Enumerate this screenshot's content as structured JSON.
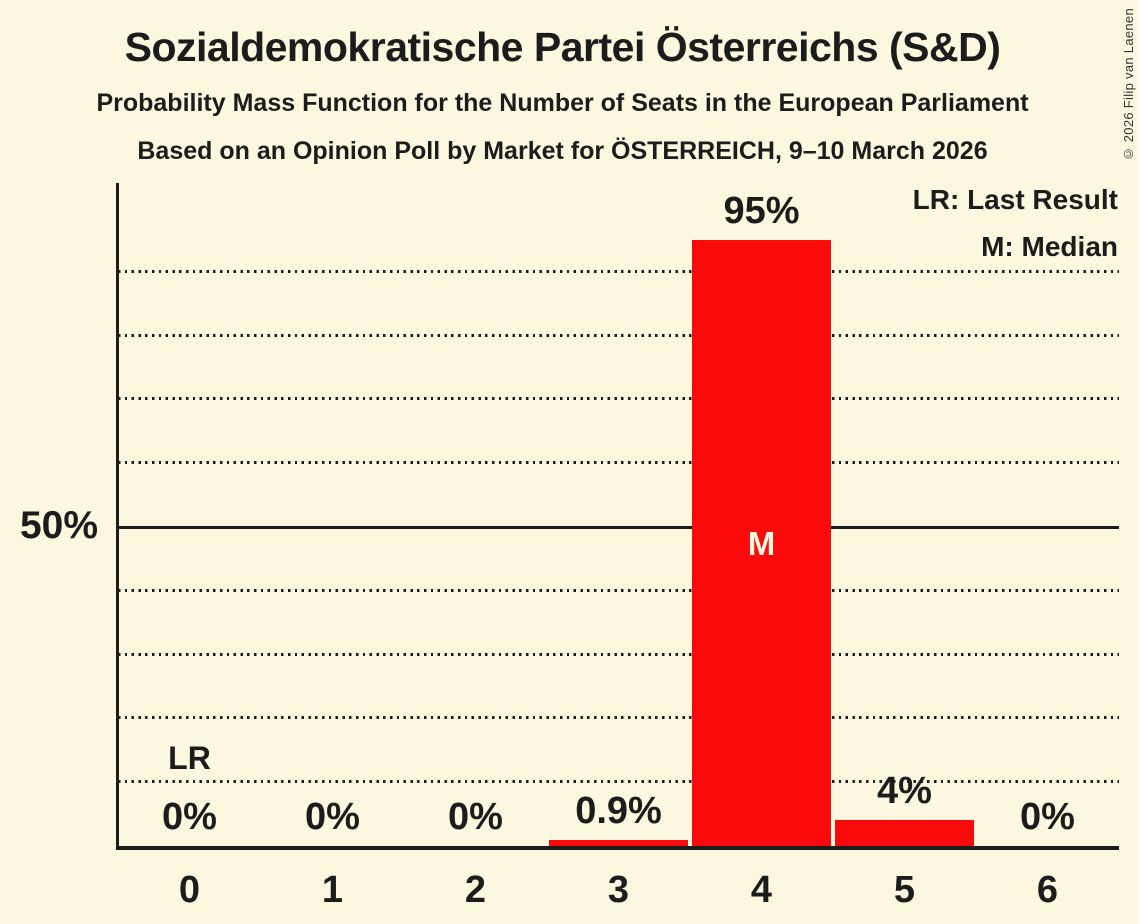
{
  "header": {
    "title": "Sozialdemokratische Partei Österreichs (S&D)",
    "subtitle1": "Probability Mass Function for the Number of Seats in the European Parliament",
    "subtitle2": "Based on an Opinion Poll by Market for ÖSTERREICH, 9–10 March 2026"
  },
  "copyright": "© 2026 Filip van Laenen",
  "legend": {
    "last_result": "LR: Last Result",
    "median": "M: Median"
  },
  "chart_data": {
    "type": "bar",
    "title": "Probability Mass Function for the Number of Seats in the European Parliament",
    "xlabel": "",
    "ylabel": "",
    "categories": [
      "0",
      "1",
      "2",
      "3",
      "4",
      "5",
      "6"
    ],
    "values": [
      0,
      0,
      0,
      0.9,
      95,
      4,
      0
    ],
    "bar_labels": [
      "0%",
      "0%",
      "0%",
      "0.9%",
      "95%",
      "4%",
      "0%"
    ],
    "ylim": [
      0,
      104
    ],
    "y_axis_tick": {
      "pct": 50,
      "label": "50%"
    },
    "gridlines_pct": [
      10,
      20,
      30,
      40,
      60,
      70,
      80,
      90
    ],
    "solid_gridline_pct": 50,
    "grid": "dotted-horizontal",
    "legend_position": "top-right",
    "median_marker": {
      "category": "4",
      "text": "M"
    },
    "last_result_marker": {
      "category": "0",
      "text": "LR"
    },
    "bar_color": "#FA0A0A",
    "background_color": "#FCF7DF",
    "axis_color": "#1C1C1C"
  }
}
